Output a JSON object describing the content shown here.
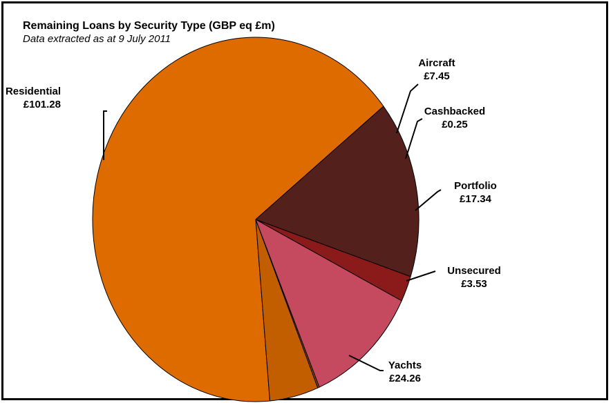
{
  "chart_data": {
    "type": "pie",
    "title": "Remaining Loans by Security Type (GBP eq £m)",
    "subtitle": "Data extracted as at 9 July 2011",
    "slices": [
      {
        "name": "Residential",
        "value": 101.28,
        "value_label": "£101.28",
        "color": "#de6b00"
      },
      {
        "name": "Aircraft",
        "value": 7.45,
        "value_label": "£7.45",
        "color": "#c25e00"
      },
      {
        "name": "Cashbacked",
        "value": 0.25,
        "value_label": "£0.25",
        "color": "#9b4a00"
      },
      {
        "name": "Portfolio",
        "value": 17.34,
        "value_label": "£17.34",
        "color": "#c5495f"
      },
      {
        "name": "Unsecured",
        "value": 3.53,
        "value_label": "£3.53",
        "color": "#8b1a1a"
      },
      {
        "name": "Yachts",
        "value": 24.26,
        "value_label": "£24.26",
        "color": "#53201b"
      }
    ]
  }
}
